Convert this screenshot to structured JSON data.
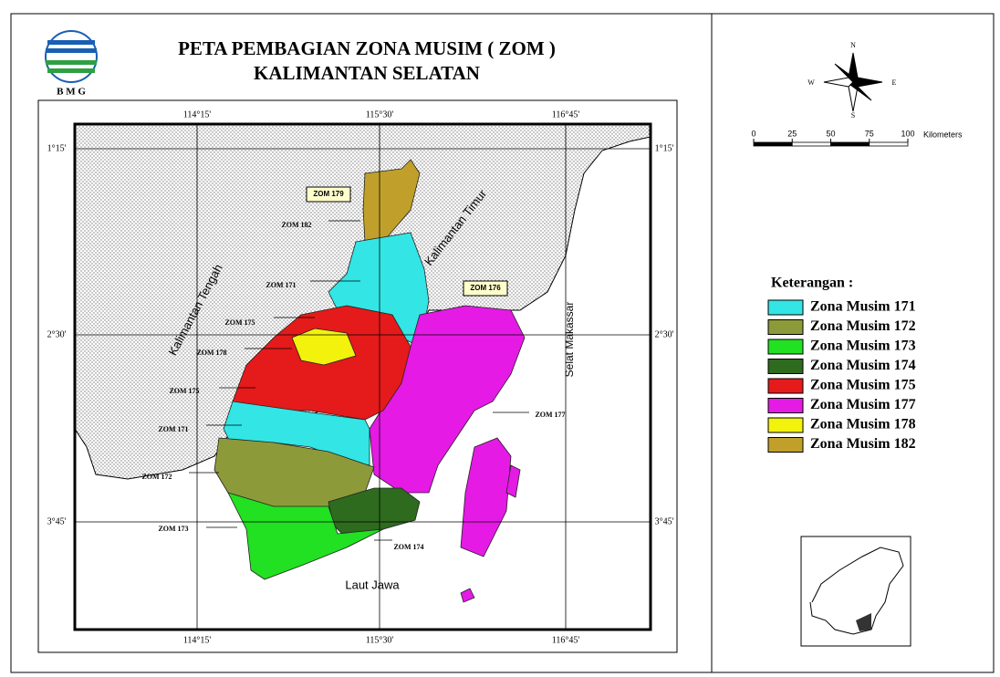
{
  "header": {
    "logo_text": "B M G",
    "title_line1": "PETA PEMBAGIAN ZONA MUSIM ( ZOM )",
    "title_line2": "KALIMANTAN SELATAN"
  },
  "grid": {
    "lon_labels": [
      "114°15'",
      "115°30'",
      "116°45'"
    ],
    "lat_labels": [
      "1°15'",
      "2°30'",
      "3°45'"
    ]
  },
  "region_labels": [
    "Kalimantan Tengah",
    "Kalimantan Timur",
    "Selat Makassar",
    "Laut Jawa"
  ],
  "boxed_labels": [
    "ZOM 179",
    "ZOM 176"
  ],
  "zone_labels": [
    "ZOM 182",
    "ZOM 171",
    "ZOM 175",
    "ZOM 178",
    "ZOM 175",
    "ZOM 171",
    "ZOM 172",
    "ZOM 173",
    "ZOM 177",
    "ZOM 174"
  ],
  "compass": {
    "north": "N",
    "south": "S",
    "east": "E",
    "west": "W"
  },
  "scale": {
    "ticks": [
      0,
      25,
      50,
      75,
      100
    ],
    "unit": "Kilometers"
  },
  "legend": {
    "title": "Keterangan :",
    "items": [
      {
        "label": "Zona Musim 171",
        "color": "#33e5e5"
      },
      {
        "label": "Zona Musim 172",
        "color": "#8c9a3a"
      },
      {
        "label": "Zona Musim 173",
        "color": "#22e022"
      },
      {
        "label": "Zona Musim 174",
        "color": "#2e6b1e"
      },
      {
        "label": "Zona Musim 175",
        "color": "#e51a1a"
      },
      {
        "label": "Zona Musim 177",
        "color": "#e51ae5"
      },
      {
        "label": "Zona Musim 178",
        "color": "#f2f20d"
      },
      {
        "label": "Zona Musim 182",
        "color": "#c0a02a"
      }
    ]
  }
}
